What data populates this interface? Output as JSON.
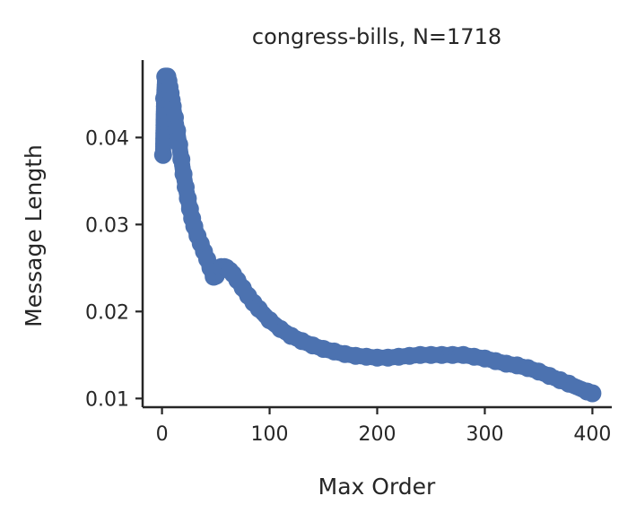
{
  "chart_data": {
    "type": "line",
    "title": "congress-bills, N=1718",
    "xlabel": "Max Order",
    "ylabel": "Message Length",
    "xlim": [
      -18,
      418
    ],
    "ylim": [
      0.009,
      0.0489
    ],
    "xticks": [
      0,
      100,
      200,
      300,
      400
    ],
    "yticks": [
      0.01,
      0.02,
      0.03,
      0.04
    ],
    "xtick_labels": [
      "0",
      "100",
      "200",
      "300",
      "400"
    ],
    "ytick_labels": [
      "0.01",
      "0.02",
      "0.03",
      "0.04"
    ],
    "grid": false,
    "legend": "none",
    "marker": "circle",
    "series": [
      {
        "color": "#4c72b0",
        "x": [
          1,
          2,
          3,
          4,
          5,
          6,
          7,
          8,
          9,
          10,
          12,
          14,
          16,
          18,
          20,
          22,
          24,
          26,
          28,
          30,
          33,
          36,
          39,
          42,
          45,
          48,
          50,
          52,
          55,
          58,
          60,
          63,
          66,
          70,
          75,
          80,
          85,
          90,
          100,
          110,
          120,
          130,
          140,
          150,
          160,
          170,
          180,
          190,
          200,
          210,
          220,
          230,
          240,
          250,
          260,
          270,
          280,
          290,
          300,
          310,
          320,
          330,
          340,
          350,
          360,
          370,
          378,
          395,
          400
        ],
        "y": [
          0.038,
          0.0445,
          0.047,
          0.047,
          0.047,
          0.0465,
          0.0458,
          0.0451,
          0.0443,
          0.0436,
          0.0423,
          0.0408,
          0.0392,
          0.0375,
          0.0358,
          0.0343,
          0.033,
          0.0318,
          0.0307,
          0.0298,
          0.0287,
          0.0278,
          0.0269,
          0.026,
          0.025,
          0.024,
          0.0241,
          0.0247,
          0.0251,
          0.0251,
          0.025,
          0.0247,
          0.0243,
          0.0236,
          0.0227,
          0.0218,
          0.021,
          0.0203,
          0.019,
          0.018,
          0.0172,
          0.0166,
          0.0161,
          0.0157,
          0.0154,
          0.0151,
          0.0149,
          0.0148,
          0.0147,
          0.0147,
          0.0148,
          0.0149,
          0.015,
          0.015,
          0.015,
          0.015,
          0.015,
          0.0148,
          0.0146,
          0.0143,
          0.014,
          0.0138,
          0.0135,
          0.0131,
          0.0126,
          0.0121,
          0.0117,
          0.0108,
          0.0106
        ]
      }
    ]
  }
}
